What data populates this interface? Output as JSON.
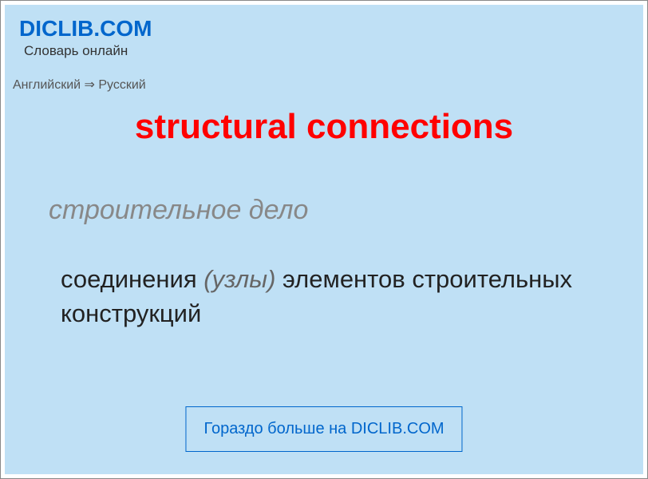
{
  "header": {
    "site_title": "DICLIB.COM",
    "subtitle": "Словарь онлайн"
  },
  "breadcrumb": {
    "text": "Английский ⇒ Русский"
  },
  "entry": {
    "title": "structural connections",
    "category": "строительное дело",
    "definition_pre": "соединения ",
    "definition_italic": "(узлы)",
    "definition_post": " элементов строительных конструкций"
  },
  "footer": {
    "text": "Гораздо больше на DICLIB.COM"
  },
  "colors": {
    "background": "#bfe0f5",
    "title_color": "#ff0000",
    "link_color": "#0066cc",
    "category_color": "#888888",
    "text_color": "#222222"
  }
}
